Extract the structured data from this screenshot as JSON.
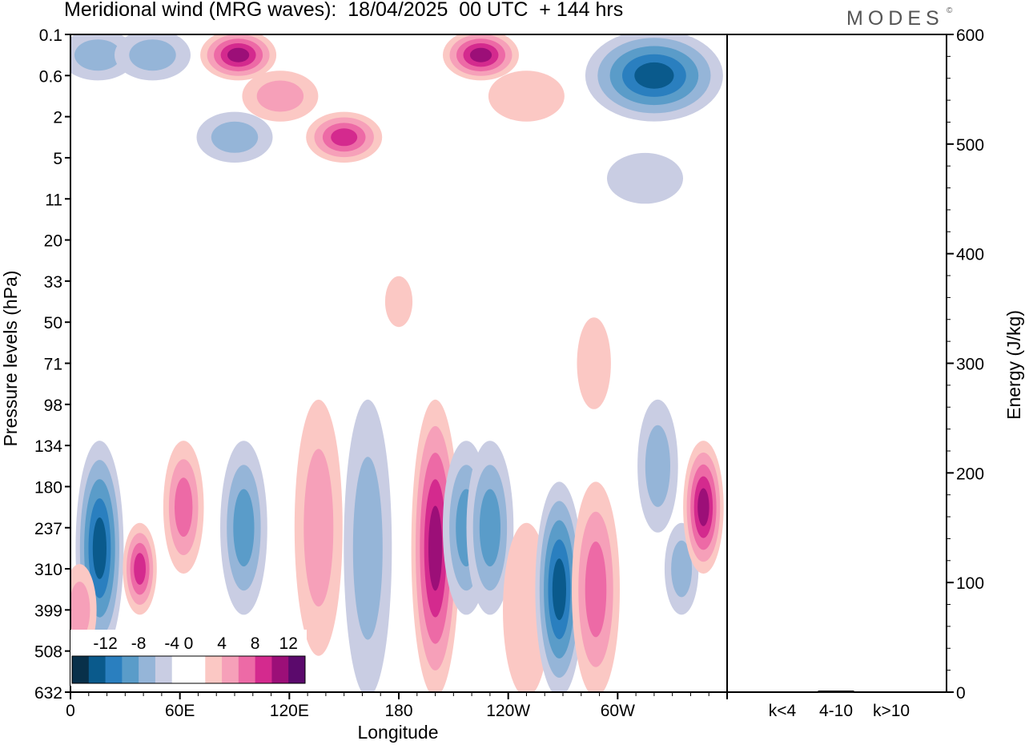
{
  "header": {
    "title": "Meridional wind (MRG waves):  18/04/2025  00 UTC  + 144 hrs",
    "brand": "MODES",
    "brand_mark": "©"
  },
  "chart_data": [
    {
      "type": "heatmap",
      "title": "Meridional wind (MRG waves):  18/04/2025  00 UTC  + 144 hrs",
      "xlabel": "Longitude",
      "ylabel": "Pressure levels (hPa)",
      "x_ticks": [
        "0",
        "60E",
        "120E",
        "180",
        "120W",
        "60W"
      ],
      "x_tick_values": [
        0,
        60,
        120,
        180,
        240,
        300
      ],
      "xlim": [
        0,
        360
      ],
      "y_ticks": [
        "0.1",
        "0.6",
        "2",
        "5",
        "11",
        "20",
        "33",
        "50",
        "71",
        "98",
        "134",
        "180",
        "237",
        "310",
        "399",
        "508",
        "632"
      ],
      "y_scale": "categorical-levels",
      "colorbar": {
        "labels": [
          "-12",
          "-8",
          "-4",
          "0",
          "4",
          "8",
          "12"
        ],
        "levels": [
          -14,
          -12,
          -10,
          -8,
          -6,
          -4,
          -2,
          2,
          4,
          6,
          8,
          10,
          12,
          14
        ],
        "colors": [
          "#08304a",
          "#0a5a8c",
          "#2a7fbf",
          "#5a9cc9",
          "#95b5d8",
          "#c9cde3",
          "#ffffff",
          "#ffffff",
          "#fbc8c4",
          "#f6a0b9",
          "#ed6aa6",
          "#d42a8e",
          "#9c0f78",
          "#5b0a6c"
        ],
        "placement": "bottom-left"
      },
      "features": [
        {
          "lon": 15,
          "p_from": "0.1",
          "p_to": "0.6",
          "sign": "negative",
          "peak": -6
        },
        {
          "lon": 45,
          "p_from": "0.1",
          "p_to": "0.6",
          "sign": "negative",
          "peak": -6
        },
        {
          "lon": 92,
          "p_from": "0.1",
          "p_to": "0.6",
          "sign": "positive",
          "peak": 12
        },
        {
          "lon": 115,
          "p_from": "0.6",
          "p_to": "2",
          "sign": "positive",
          "peak": 6
        },
        {
          "lon": 150,
          "p_from": "2",
          "p_to": "5",
          "sign": "positive",
          "peak": 10
        },
        {
          "lon": 90,
          "p_from": "2",
          "p_to": "5",
          "sign": "negative",
          "peak": -6
        },
        {
          "lon": 225,
          "p_from": "0.1",
          "p_to": "0.6",
          "sign": "positive",
          "peak": 12
        },
        {
          "lon": 250,
          "p_from": "0.6",
          "p_to": "2",
          "sign": "positive",
          "peak": 4
        },
        {
          "lon": 320,
          "p_from": "0.1",
          "p_to": "2",
          "sign": "negative",
          "peak": -12
        },
        {
          "lon": 315,
          "p_from": "5",
          "p_to": "11",
          "sign": "negative",
          "peak": -4
        },
        {
          "lon": 180,
          "p_from": "33",
          "p_to": "50",
          "sign": "positive",
          "peak": 4
        },
        {
          "lon": 287,
          "p_from": "50",
          "p_to": "98",
          "sign": "positive",
          "peak": 4
        },
        {
          "lon": 16,
          "p_from": "134",
          "p_to": "508",
          "sign": "negative",
          "peak": -12
        },
        {
          "lon": 38,
          "p_from": "237",
          "p_to": "399",
          "sign": "positive",
          "peak": 10
        },
        {
          "lon": 62,
          "p_from": "134",
          "p_to": "310",
          "sign": "positive",
          "peak": 8
        },
        {
          "lon": 95,
          "p_from": "134",
          "p_to": "399",
          "sign": "negative",
          "peak": -8
        },
        {
          "lon": 136,
          "p_from": "98",
          "p_to": "508",
          "sign": "positive",
          "peak": 6
        },
        {
          "lon": 163,
          "p_from": "98",
          "p_to": "632",
          "sign": "negative",
          "peak": -6
        },
        {
          "lon": 200,
          "p_from": "98",
          "p_to": "632",
          "sign": "positive",
          "peak": 12
        },
        {
          "lon": 217,
          "p_from": "134",
          "p_to": "399",
          "sign": "negative",
          "peak": -8
        },
        {
          "lon": 230,
          "p_from": "134",
          "p_to": "399",
          "sign": "negative",
          "peak": -8
        },
        {
          "lon": 250,
          "p_from": "237",
          "p_to": "632",
          "sign": "positive",
          "peak": 4
        },
        {
          "lon": 268,
          "p_from": "180",
          "p_to": "632",
          "sign": "negative",
          "peak": -12
        },
        {
          "lon": 288,
          "p_from": "180",
          "p_to": "632",
          "sign": "positive",
          "peak": 8
        },
        {
          "lon": 322,
          "p_from": "98",
          "p_to": "237",
          "sign": "negative",
          "peak": -6
        },
        {
          "lon": 335,
          "p_from": "237",
          "p_to": "399",
          "sign": "negative",
          "peak": -6
        },
        {
          "lon": 347,
          "p_from": "134",
          "p_to": "310",
          "sign": "positive",
          "peak": 12
        },
        {
          "lon": 5,
          "p_from": "310",
          "p_to": "508",
          "sign": "positive",
          "peak": 6
        }
      ]
    },
    {
      "type": "bar",
      "ylabel": "Energy (J/kg)",
      "categories": [
        "k<4",
        "4-10",
        "k>10"
      ],
      "values": [
        0,
        1,
        0
      ],
      "ylim": [
        0,
        600
      ],
      "y_ticks": [
        "0",
        "100",
        "200",
        "300",
        "400",
        "500",
        "600"
      ],
      "y_axis_side": "right"
    }
  ]
}
